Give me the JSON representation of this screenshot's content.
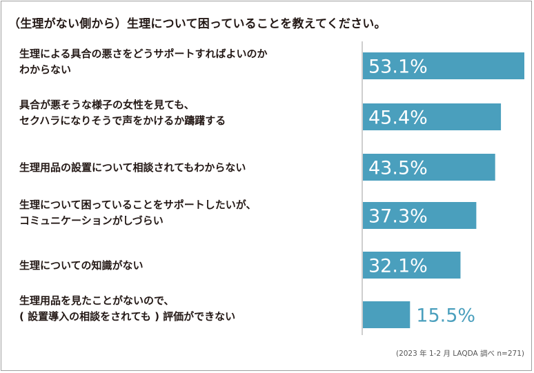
{
  "chart_data": {
    "type": "bar",
    "orientation": "horizontal",
    "title": "（生理がない側から）生理について困っていることを教えてください。",
    "categories": [
      "生理による具合の悪さをどうサポートすればよいのか\nわからない",
      "具合が悪そうな様子の女性を見ても、\nセクハラになりそうで声をかけるか躊躇する",
      "生理用品の設置について相談されてもわからない",
      "生理について困っていることをサポートしたいが、\nコミュニケーションがしづらい",
      " 生理についての知識がない",
      "生理用品を見たことがないので、\n( 設置導入の相談をされても ) 評価ができない"
    ],
    "values": [
      53.1,
      45.4,
      43.5,
      37.3,
      32.1,
      15.5
    ],
    "value_labels": [
      "53.1%",
      "45.4%",
      "43.5%",
      "37.3%",
      "32.1%",
      "15.5%"
    ],
    "xlim": [
      0,
      53.1
    ],
    "bar_color": "#4a9fbd",
    "source": "(2023 年 1-2 月 LAQDA 調べ n=271)"
  }
}
